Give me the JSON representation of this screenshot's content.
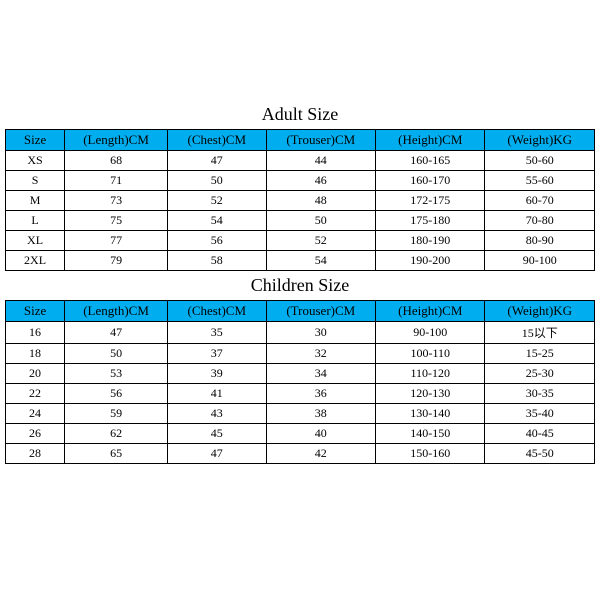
{
  "header_color": "#00aeef",
  "cols": {
    "size": "Size",
    "length": "(Length)CM",
    "chest": "(Chest)CM",
    "trouser": "(Trouser)CM",
    "height": "(Height)CM",
    "weight": "(Weight)KG"
  },
  "adult": {
    "title": "Adult Size",
    "rows": [
      {
        "size": "XS",
        "length": "68",
        "chest": "47",
        "trouser": "44",
        "height": "160-165",
        "weight": "50-60"
      },
      {
        "size": "S",
        "length": "71",
        "chest": "50",
        "trouser": "46",
        "height": "160-170",
        "weight": "55-60"
      },
      {
        "size": "M",
        "length": "73",
        "chest": "52",
        "trouser": "48",
        "height": "172-175",
        "weight": "60-70"
      },
      {
        "size": "L",
        "length": "75",
        "chest": "54",
        "trouser": "50",
        "height": "175-180",
        "weight": "70-80"
      },
      {
        "size": "XL",
        "length": "77",
        "chest": "56",
        "trouser": "52",
        "height": "180-190",
        "weight": "80-90"
      },
      {
        "size": "2XL",
        "length": "79",
        "chest": "58",
        "trouser": "54",
        "height": "190-200",
        "weight": "90-100"
      }
    ]
  },
  "children": {
    "title": "Children Size",
    "rows": [
      {
        "size": "16",
        "length": "47",
        "chest": "35",
        "trouser": "30",
        "height": "90-100",
        "weight": "15以下"
      },
      {
        "size": "18",
        "length": "50",
        "chest": "37",
        "trouser": "32",
        "height": "100-110",
        "weight": "15-25"
      },
      {
        "size": "20",
        "length": "53",
        "chest": "39",
        "trouser": "34",
        "height": "110-120",
        "weight": "25-30"
      },
      {
        "size": "22",
        "length": "56",
        "chest": "41",
        "trouser": "36",
        "height": "120-130",
        "weight": "30-35"
      },
      {
        "size": "24",
        "length": "59",
        "chest": "43",
        "trouser": "38",
        "height": "130-140",
        "weight": "35-40"
      },
      {
        "size": "26",
        "length": "62",
        "chest": "45",
        "trouser": "40",
        "height": "140-150",
        "weight": "40-45"
      },
      {
        "size": "28",
        "length": "65",
        "chest": "47",
        "trouser": "42",
        "height": "150-160",
        "weight": "45-50"
      }
    ]
  }
}
